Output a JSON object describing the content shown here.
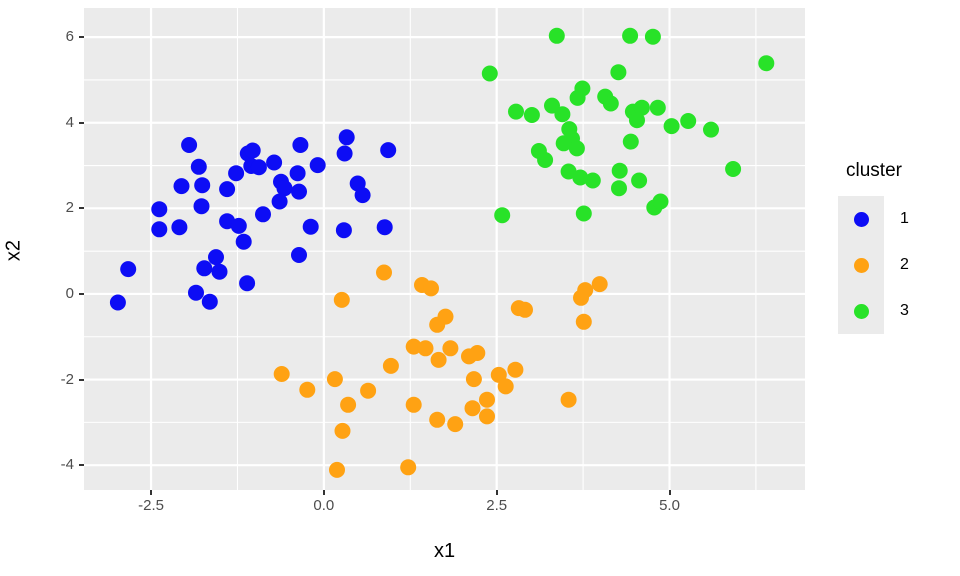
{
  "chart_data": {
    "type": "scatter",
    "title": "",
    "xlabel": "x1",
    "ylabel": "x2",
    "xlim": [
      -3.47,
      6.96
    ],
    "ylim": [
      -4.58,
      6.68
    ],
    "x_ticks": [
      -2.5,
      0.0,
      2.5,
      5.0
    ],
    "x_tick_labels": [
      "-2.5",
      "0.0",
      "2.5",
      "5.0"
    ],
    "y_ticks": [
      -4,
      -2,
      0,
      2,
      4,
      6
    ],
    "y_tick_labels": [
      "-4",
      "-2",
      "0",
      "2",
      "4",
      "6"
    ],
    "x_minor_gridlines": [
      -1.25,
      1.25,
      3.75,
      6.25
    ],
    "y_minor_gridlines": [
      -3,
      -1,
      1,
      3,
      5
    ],
    "grid": true,
    "panel_background": "#EBEBEB",
    "gridline_color": "#FFFFFF",
    "tick_label_color": "#4D4D4D",
    "axis_title_color": "#000000",
    "point_radius_px": 8,
    "legend": {
      "title": "cluster",
      "position": "right",
      "entries": [
        {
          "label": "1",
          "color": "#0D0DF5"
        },
        {
          "label": "2",
          "color": "#FFA213"
        },
        {
          "label": "3",
          "color": "#28E228"
        }
      ]
    },
    "series": [
      {
        "name": "1",
        "color": "#0D0DF5",
        "points": [
          [
            -1.95,
            3.48
          ],
          [
            -1.81,
            2.97
          ],
          [
            -2.06,
            2.52
          ],
          [
            -1.76,
            2.54
          ],
          [
            -1.27,
            2.82
          ],
          [
            -1.1,
            3.28
          ],
          [
            -1.4,
            2.45
          ],
          [
            -1.77,
            2.05
          ],
          [
            -2.38,
            1.98
          ],
          [
            -2.38,
            1.51
          ],
          [
            -2.09,
            1.56
          ],
          [
            -1.4,
            1.7
          ],
          [
            -1.23,
            1.59
          ],
          [
            -1.16,
            1.22
          ],
          [
            -1.73,
            0.6
          ],
          [
            -1.56,
            0.86
          ],
          [
            -1.51,
            0.52
          ],
          [
            -2.83,
            0.58
          ],
          [
            -1.85,
            0.03
          ],
          [
            -1.65,
            -0.18
          ],
          [
            -2.98,
            -0.2
          ],
          [
            -1.11,
            0.25
          ],
          [
            -1.05,
            2.99
          ],
          [
            -0.94,
            2.96
          ],
          [
            -1.03,
            3.35
          ],
          [
            -0.72,
            3.07
          ],
          [
            -0.62,
            2.62
          ],
          [
            -0.57,
            2.47
          ],
          [
            -0.38,
            2.82
          ],
          [
            -0.09,
            3.01
          ],
          [
            -0.34,
            3.48
          ],
          [
            0.33,
            3.66
          ],
          [
            0.3,
            3.28
          ],
          [
            0.93,
            3.36
          ],
          [
            -0.36,
            2.39
          ],
          [
            -0.64,
            2.16
          ],
          [
            0.49,
            2.58
          ],
          [
            0.56,
            2.31
          ],
          [
            -0.88,
            1.86
          ],
          [
            -0.19,
            1.57
          ],
          [
            0.29,
            1.49
          ],
          [
            0.88,
            1.56
          ],
          [
            -0.36,
            0.91
          ]
        ]
      },
      {
        "name": "2",
        "color": "#FFA213",
        "points": [
          [
            0.26,
            -0.14
          ],
          [
            0.87,
            0.5
          ],
          [
            1.42,
            0.21
          ],
          [
            1.55,
            0.13
          ],
          [
            3.78,
            0.09
          ],
          [
            3.99,
            0.23
          ],
          [
            3.72,
            -0.09
          ],
          [
            3.76,
            -0.65
          ],
          [
            2.82,
            -0.33
          ],
          [
            2.91,
            -0.37
          ],
          [
            1.76,
            -0.53
          ],
          [
            1.64,
            -0.72
          ],
          [
            1.3,
            -1.23
          ],
          [
            1.47,
            -1.27
          ],
          [
            1.83,
            -1.27
          ],
          [
            1.66,
            -1.54
          ],
          [
            0.97,
            -1.68
          ],
          [
            -0.61,
            -1.87
          ],
          [
            -0.24,
            -2.24
          ],
          [
            0.16,
            -1.99
          ],
          [
            0.64,
            -2.26
          ],
          [
            0.35,
            -2.59
          ],
          [
            1.3,
            -2.59
          ],
          [
            2.1,
            -1.46
          ],
          [
            2.22,
            -1.38
          ],
          [
            2.17,
            -1.99
          ],
          [
            2.53,
            -1.89
          ],
          [
            2.63,
            -2.16
          ],
          [
            2.77,
            -1.77
          ],
          [
            2.36,
            -2.47
          ],
          [
            2.15,
            -2.67
          ],
          [
            2.36,
            -2.86
          ],
          [
            3.54,
            -2.47
          ],
          [
            1.64,
            -2.94
          ],
          [
            1.9,
            -3.04
          ],
          [
            0.27,
            -3.2
          ],
          [
            0.19,
            -4.11
          ],
          [
            1.22,
            -4.05
          ]
        ]
      },
      {
        "name": "3",
        "color": "#28E228",
        "points": [
          [
            3.37,
            6.03
          ],
          [
            4.43,
            6.03
          ],
          [
            4.76,
            6.01
          ],
          [
            2.4,
            5.15
          ],
          [
            4.26,
            5.18
          ],
          [
            6.4,
            5.39
          ],
          [
            3.74,
            4.8
          ],
          [
            3.67,
            4.58
          ],
          [
            4.07,
            4.61
          ],
          [
            4.15,
            4.45
          ],
          [
            2.78,
            4.26
          ],
          [
            3.01,
            4.18
          ],
          [
            3.3,
            4.4
          ],
          [
            3.45,
            4.2
          ],
          [
            3.55,
            3.85
          ],
          [
            3.59,
            3.63
          ],
          [
            3.47,
            3.52
          ],
          [
            3.66,
            3.4
          ],
          [
            3.11,
            3.34
          ],
          [
            3.2,
            3.13
          ],
          [
            3.54,
            2.86
          ],
          [
            3.71,
            2.72
          ],
          [
            3.89,
            2.65
          ],
          [
            4.28,
            2.88
          ],
          [
            4.27,
            2.47
          ],
          [
            2.58,
            1.84
          ],
          [
            3.76,
            1.88
          ],
          [
            4.47,
            4.26
          ],
          [
            4.6,
            4.35
          ],
          [
            4.53,
            4.06
          ],
          [
            4.83,
            4.35
          ],
          [
            5.03,
            3.92
          ],
          [
            5.27,
            4.04
          ],
          [
            5.6,
            3.84
          ],
          [
            4.44,
            3.56
          ],
          [
            5.92,
            2.92
          ],
          [
            4.56,
            2.65
          ],
          [
            4.78,
            2.02
          ],
          [
            4.87,
            2.16
          ]
        ]
      }
    ]
  }
}
